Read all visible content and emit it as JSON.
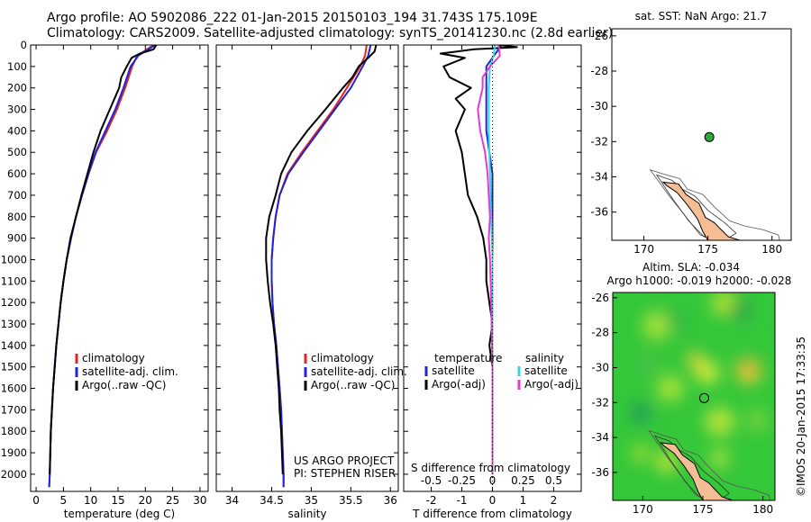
{
  "header": {
    "line1": "Argo profile: AO 5902086_222 01-Jan-2015 20150103_194 31.743S 175.109E",
    "line2": "Climatology: CARS2009. Satellite-adjusted climatology: synTS_20141230.nc (2.8d earlier)"
  },
  "credit": "©IMOS 20-Jan-2015 17:33:35",
  "colors": {
    "climatology": "#e8231c",
    "satellite": "#1f24d8",
    "argo": "#000000",
    "t_satellite": "#1f24d8",
    "t_argo": "#000000",
    "s_satellite": "#2fd8e6",
    "s_argo": "#e23bd6",
    "land": "#f4bd94",
    "float_marker": "#2fa83a"
  },
  "chart_data": [
    {
      "id": "temperature",
      "type": "line",
      "xlabel": "temperature (deg C)",
      "ylabel": "",
      "xlim": [
        -1,
        31.5
      ],
      "ylim": [
        2080,
        0
      ],
      "xticks": [
        0,
        5,
        10,
        15,
        20,
        25,
        30
      ],
      "yticks": [
        0,
        100,
        200,
        300,
        400,
        500,
        600,
        700,
        800,
        900,
        1000,
        1100,
        1200,
        1300,
        1400,
        1500,
        1600,
        1700,
        1800,
        1900,
        2000
      ],
      "legend": {
        "position": "lower-right",
        "entries": [
          "climatology",
          "satellite-adj. clim.",
          "Argo(..raw -QC)"
        ]
      },
      "series": [
        {
          "name": "climatology",
          "color": "#e8231c",
          "depth": [
            0,
            50,
            100,
            200,
            300,
            400,
            500,
            600,
            700,
            800,
            900,
            1000,
            1100,
            1200,
            1300,
            1400,
            1500,
            1600,
            1700,
            1800,
            1900,
            2000,
            2060
          ],
          "values": [
            21.5,
            18.5,
            17.6,
            16.3,
            14.8,
            13.0,
            11.0,
            9.6,
            8.4,
            7.3,
            6.4,
            5.6,
            5.0,
            4.5,
            4.1,
            3.7,
            3.4,
            3.1,
            2.9,
            2.7,
            2.6,
            2.5,
            2.4
          ]
        },
        {
          "name": "satellite-adj. clim.",
          "color": "#1f24d8",
          "depth": [
            0,
            50,
            100,
            200,
            300,
            400,
            500,
            600,
            700,
            800,
            900,
            1000,
            1100,
            1200,
            1300,
            1400,
            1500,
            1600,
            1700,
            1800,
            1900,
            2000,
            2060
          ],
          "values": [
            21.8,
            18.7,
            17.3,
            16.0,
            14.5,
            12.7,
            10.9,
            9.6,
            8.4,
            7.3,
            6.4,
            5.6,
            5.0,
            4.5,
            4.1,
            3.7,
            3.4,
            3.1,
            2.9,
            2.7,
            2.6,
            2.5,
            2.4
          ]
        },
        {
          "name": "Argo(..raw -QC)",
          "color": "#000000",
          "depth": [
            0,
            20,
            40,
            60,
            100,
            150,
            200,
            300,
            400,
            500,
            600,
            700,
            800,
            900,
            1000,
            1100,
            1200,
            1300,
            1400,
            1500,
            1600,
            1700,
            1800,
            1900,
            2000
          ],
          "values": [
            22.0,
            21.5,
            19.0,
            17.5,
            16.6,
            15.6,
            15.2,
            13.5,
            11.8,
            10.5,
            9.4,
            8.3,
            7.3,
            6.3,
            5.6,
            5.0,
            4.5,
            4.1,
            3.7,
            3.4,
            3.1,
            2.9,
            2.7,
            2.6,
            2.5
          ]
        }
      ]
    },
    {
      "id": "salinity",
      "type": "line",
      "xlabel": "salinity",
      "ylabel": "",
      "xlim": [
        33.8,
        36.1
      ],
      "ylim": [
        2080,
        0
      ],
      "xticks": [
        34,
        34.5,
        35,
        35.5,
        36
      ],
      "legend": {
        "position": "lower-right",
        "entries": [
          "climatology",
          "satellite-adj. clim.",
          "Argo(..raw -QC)"
        ]
      },
      "annotation": [
        "US ARGO PROJECT",
        "PI: STEPHEN RISER"
      ],
      "series": [
        {
          "name": "climatology",
          "color": "#e8231c",
          "depth": [
            0,
            50,
            100,
            200,
            300,
            400,
            500,
            600,
            700,
            800,
            900,
            1000,
            1100,
            1200,
            1300,
            1400,
            1500,
            1600,
            1700,
            1800,
            1900,
            2000,
            2060
          ],
          "values": [
            35.7,
            35.68,
            35.62,
            35.45,
            35.28,
            35.08,
            34.88,
            34.7,
            34.6,
            34.55,
            34.52,
            34.5,
            34.5,
            34.51,
            34.53,
            34.56,
            34.58,
            34.6,
            34.62,
            34.63,
            34.64,
            34.65,
            34.65
          ]
        },
        {
          "name": "satellite-adj. clim.",
          "color": "#1f24d8",
          "depth": [
            0,
            50,
            100,
            200,
            300,
            400,
            500,
            600,
            700,
            800,
            900,
            1000,
            1100,
            1200,
            1300,
            1400,
            1500,
            1600,
            1700,
            1800,
            1900,
            2000,
            2060
          ],
          "values": [
            35.75,
            35.72,
            35.65,
            35.5,
            35.3,
            35.1,
            34.9,
            34.71,
            34.6,
            34.55,
            34.52,
            34.5,
            34.5,
            34.51,
            34.53,
            34.56,
            34.58,
            34.6,
            34.62,
            34.63,
            34.64,
            34.65,
            34.65
          ]
        },
        {
          "name": "Argo(..raw -QC)",
          "color": "#000000",
          "depth": [
            0,
            30,
            60,
            100,
            150,
            200,
            300,
            400,
            500,
            600,
            700,
            800,
            900,
            1000,
            1100,
            1200,
            1300,
            1400,
            1500,
            1600,
            1700,
            1800,
            1900,
            2000
          ],
          "values": [
            35.82,
            35.8,
            35.72,
            35.6,
            35.52,
            35.4,
            35.18,
            34.95,
            34.75,
            34.62,
            34.55,
            34.47,
            34.43,
            34.43,
            34.45,
            34.48,
            34.52,
            34.55,
            34.57,
            34.59,
            34.6,
            34.62,
            34.63,
            34.64
          ]
        }
      ]
    },
    {
      "id": "differences",
      "type": "line",
      "xlabel": "T difference from climatology",
      "top_axis_label": "S difference from climatology",
      "ylabel": "",
      "xlim": [
        -2.9,
        2.9
      ],
      "ylim": [
        2080,
        0
      ],
      "xticks": [
        -2,
        -1,
        0,
        1,
        2
      ],
      "top_xticks": [
        "-0.5",
        "-0.25",
        "0",
        "0.25",
        "0.5"
      ],
      "legend": {
        "position": "lower-right",
        "headers": [
          "temperature",
          "salinity"
        ],
        "entries": [
          "satellite",
          "Argo(-adj)",
          "satellite",
          "Argo(-adj)"
        ]
      },
      "series": [
        {
          "name": "satellite",
          "color": "#1f24d8",
          "depth": [
            0,
            100,
            200,
            300,
            400,
            500,
            600,
            700,
            800,
            900,
            1000,
            1200,
            1500,
            2000
          ],
          "values": [
            0.3,
            -0.2,
            -0.2,
            -0.2,
            -0.2,
            -0.1,
            0,
            0,
            0,
            0,
            0,
            0,
            0,
            0
          ]
        },
        {
          "name": "Argo(-adj)",
          "color": "#000000",
          "depth": [
            0,
            10,
            20,
            40,
            60,
            100,
            150,
            200,
            250,
            300,
            400,
            500,
            600,
            700,
            800,
            900,
            1000,
            1100,
            1200,
            1300,
            1400,
            1500,
            1700,
            1900,
            2000
          ],
          "values": [
            0.2,
            0.8,
            -0.6,
            -1.7,
            -0.9,
            -1.6,
            -1.4,
            -0.7,
            -1.2,
            -0.9,
            -1.2,
            -1.0,
            -0.9,
            -0.8,
            -0.5,
            -0.3,
            -0.2,
            -0.2,
            -0.1,
            0,
            -0.1,
            0,
            0,
            0,
            0
          ]
        },
        {
          "name": "satellite",
          "color": "#2fd8e6",
          "depth": [
            0,
            50,
            100,
            200,
            300,
            400,
            600,
            800,
            1000,
            1200,
            1500,
            2000
          ],
          "values": [
            0.02,
            0.01,
            -0.02,
            -0.03,
            -0.03,
            -0.03,
            -0.02,
            -0.01,
            0,
            0,
            0,
            0
          ]
        },
        {
          "name": "Argo(-adj)",
          "color": "#e23bd6",
          "depth": [
            0,
            50,
            100,
            150,
            200,
            300,
            400,
            500,
            600,
            700,
            800,
            900,
            1000,
            1200,
            1500,
            2000
          ],
          "values": [
            0.05,
            0.06,
            -0.02,
            -0.08,
            -0.08,
            -0.12,
            -0.1,
            -0.06,
            -0.04,
            -0.03,
            -0.02,
            -0.03,
            -0.02,
            -0.01,
            0,
            0
          ]
        }
      ]
    },
    {
      "id": "location-map",
      "type": "scatter",
      "title": "sat. SST: NaN Argo: 21.7",
      "xlim": [
        167.5,
        181.5
      ],
      "ylim": [
        -37.6,
        -25.6
      ],
      "xticks": [
        170,
        175,
        180
      ],
      "yticks": [
        -26,
        -28,
        -30,
        -32,
        -34,
        -36
      ],
      "points": [
        {
          "lon": 175.109,
          "lat": -31.743
        }
      ]
    },
    {
      "id": "sla-map",
      "type": "heatmap",
      "title": "Altim. SLA: -0.034",
      "subtitle": "Argo h1000: -0.019 h2000: -0.028",
      "xlim": [
        167.5,
        181.0
      ],
      "ylim": [
        -37.6,
        -25.7
      ],
      "xticks": [
        170,
        175,
        180
      ],
      "yticks": [
        -26,
        -28,
        -30,
        -32,
        -34,
        -36
      ],
      "points": [
        {
          "lon": 175.109,
          "lat": -31.743
        }
      ]
    }
  ]
}
